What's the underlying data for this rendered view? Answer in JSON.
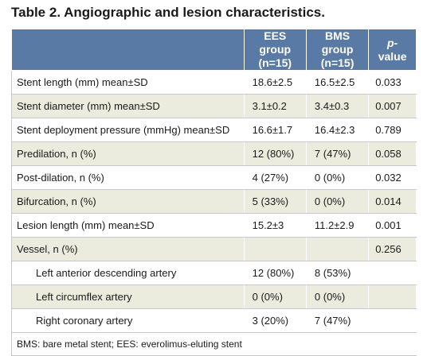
{
  "caption": "Table 2. Angiographic and lesion characteristics.",
  "header": {
    "col1": "",
    "col2_line1": "EES group",
    "col2_line2": "(n=15)",
    "col3_line1": "BMS group",
    "col3_line2": "(n=15)",
    "col4_italic": "p",
    "col4_rest": "-value"
  },
  "rows": [
    {
      "label": "Stent length (mm) mean±SD",
      "ees": "18.6±2.5",
      "bms": "16.5±2.5",
      "p": "0.033"
    },
    {
      "label": "Stent diameter (mm) mean±SD",
      "ees": "3.1±0.2",
      "bms": "3.4±0.3",
      "p": "0.007"
    },
    {
      "label": "Stent deployment pressure (mmHg) mean±SD",
      "ees": "16.6±1.7",
      "bms": "16.4±2.3",
      "p": "0.789"
    },
    {
      "label": "Predilation, n (%)",
      "ees": "12 (80%)",
      "bms": "7 (47%)",
      "p": "0.058"
    },
    {
      "label": "Post-dilation, n (%)",
      "ees": "4 (27%)",
      "bms": "0 (0%)",
      "p": "0.032"
    },
    {
      "label": "Bifurcation, n (%)",
      "ees": "5 (33%)",
      "bms": "0 (0%)",
      "p": "0.014"
    },
    {
      "label": "Lesion length (mm) mean±SD",
      "ees": "15.2±3",
      "bms": "11.2±2.9",
      "p": "0.001"
    },
    {
      "label": "Vessel, n (%)",
      "ees": "",
      "bms": "",
      "p": "0.256"
    },
    {
      "label": "Left anterior descending artery",
      "ees": "12 (80%)",
      "bms": "8 (53%)",
      "p": ""
    },
    {
      "label": "Left circumflex artery",
      "ees": "0 (0%)",
      "bms": "0 (0%)",
      "p": ""
    },
    {
      "label": "Right coronary artery",
      "ees": "3 (20%)",
      "bms": "7 (47%)",
      "p": ""
    }
  ],
  "footnote": "BMS: bare metal stent; EES: everolimus-eluting stent"
}
